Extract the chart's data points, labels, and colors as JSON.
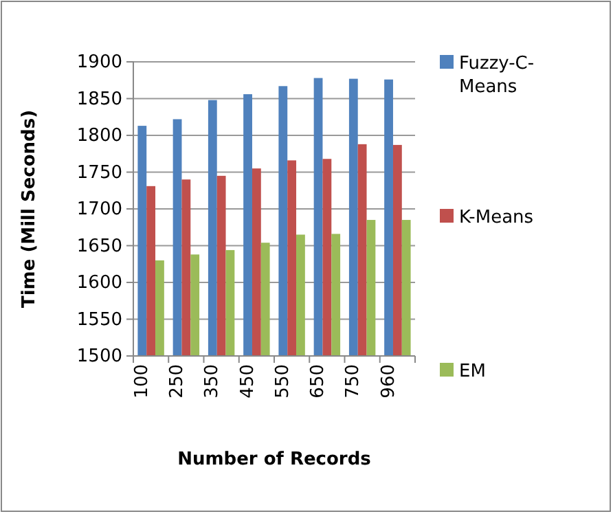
{
  "chart_data": {
    "type": "bar",
    "xlabel": "Number of Records",
    "ylabel": "Time (Mill Seconds)",
    "categories": [
      "100",
      "250",
      "350",
      "450",
      "550",
      "650",
      "750",
      "960"
    ],
    "series": [
      {
        "name": "Fuzzy-C-Means",
        "color": "#4f81bd",
        "values": [
          1813,
          1822,
          1848,
          1856,
          1867,
          1878,
          1877,
          1876
        ]
      },
      {
        "name": "K-Means",
        "color": "#c0504d",
        "values": [
          1731,
          1740,
          1745,
          1755,
          1766,
          1768,
          1788,
          1787
        ]
      },
      {
        "name": "EM",
        "color": "#9bbb59",
        "values": [
          1630,
          1638,
          1644,
          1654,
          1665,
          1666,
          1685,
          1685
        ]
      }
    ],
    "ylim": [
      1500,
      1900
    ],
    "yticks": [
      1500,
      1550,
      1600,
      1650,
      1700,
      1750,
      1800,
      1850,
      1900
    ],
    "grid": "y",
    "legend": "right"
  }
}
